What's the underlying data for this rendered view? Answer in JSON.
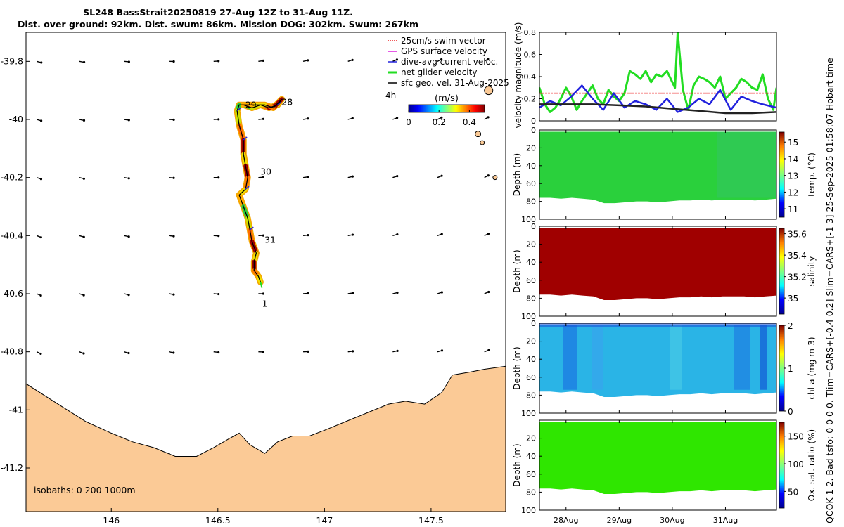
{
  "title": {
    "line1": "SL248 BassStrait20250819 27-Aug 12Z to 31-Aug 11Z.",
    "line2": "Dist. over ground: 92km. Dist. swum: 86km. Mission DOG: 302km. Swum: 267km"
  },
  "side_label": "QCOK 1  2. Bad tsfo: 0  0  0  0. Tlim=CARS+[-0.4 0.2] Slim=CARS+[-1 3] 25-Sep-2025 01:58:07 Hobart time",
  "colors": {
    "land": "#fbca96",
    "path": "#000000",
    "glider": "#22dd22",
    "current": "#2222dd",
    "swim": "#ee2222",
    "gps": "#dd22dd"
  },
  "chart_data": [
    {
      "type": "map",
      "xlim": [
        145.6,
        147.85
      ],
      "ylim": [
        -41.35,
        -39.7
      ],
      "xticks": [
        146,
        146.5,
        147,
        147.5
      ],
      "xtick_labels": [
        "146",
        "146.5",
        "147",
        "147.5"
      ],
      "yticks": [
        -39.8,
        -40,
        -40.2,
        -40.4,
        -40.6,
        -40.8,
        -41,
        -41.2
      ],
      "ytick_labels": [
        "-39.8",
        "-40",
        "-40.2",
        "-40.4",
        "-40.6",
        "-40.8",
        "-41",
        "-41.2"
      ],
      "legend": [
        {
          "label": "25cm/s swim vector",
          "color": "#ee2222"
        },
        {
          "label": "GPS surface velocity",
          "color": "#dd22dd"
        },
        {
          "label": "dive-avg current veloc.",
          "color": "#2222dd"
        },
        {
          "label": "net glider velocity",
          "color": "#22dd22"
        },
        {
          "label": "sfc geo. vel. 31-Aug-2025",
          "color": "#000000"
        }
      ],
      "legend_extra": "4h",
      "colorbar": {
        "label": "(m/s)",
        "ticks": [
          0,
          0.2,
          0.4
        ],
        "tick_labels": [
          "0",
          "0.2",
          "0.4"
        ],
        "range": [
          0,
          0.5
        ]
      },
      "isobaths_label": "isobaths: 0   200  1000m",
      "track": [
        [
          146.62,
          -39.95
        ],
        [
          146.66,
          -39.96
        ],
        [
          146.7,
          -39.95
        ],
        [
          146.74,
          -39.96
        ],
        [
          146.78,
          -39.95
        ],
        [
          146.8,
          -39.93
        ],
        [
          146.76,
          -39.96
        ],
        [
          146.72,
          -39.95
        ],
        [
          146.66,
          -39.95
        ],
        [
          146.6,
          -39.95
        ],
        [
          146.59,
          -39.97
        ],
        [
          146.6,
          -40.02
        ],
        [
          146.62,
          -40.07
        ],
        [
          146.62,
          -40.12
        ],
        [
          146.63,
          -40.16
        ],
        [
          146.64,
          -40.2
        ],
        [
          146.63,
          -40.24
        ],
        [
          146.6,
          -40.26
        ],
        [
          146.62,
          -40.3
        ],
        [
          146.64,
          -40.34
        ],
        [
          146.65,
          -40.38
        ],
        [
          146.66,
          -40.42
        ],
        [
          146.68,
          -40.46
        ],
        [
          146.67,
          -40.49
        ],
        [
          146.67,
          -40.52
        ],
        [
          146.69,
          -40.54
        ],
        [
          146.7,
          -40.56
        ]
      ],
      "day_labels": [
        {
          "text": "28",
          "lon": 146.825,
          "lat": -39.95
        },
        {
          "text": "29",
          "lon": 146.655,
          "lat": -39.96
        },
        {
          "text": "30",
          "lon": 146.725,
          "lat": -40.19
        },
        {
          "text": "31",
          "lon": 146.745,
          "lat": -40.425
        },
        {
          "text": "1",
          "lon": 146.72,
          "lat": -40.645
        }
      ],
      "arrow_grid": {
        "lons": [
          145.65,
          145.85,
          146.06,
          146.27,
          146.48,
          146.69,
          146.9,
          147.11,
          147.32,
          147.53,
          147.75
        ],
        "lats": [
          -39.8,
          -40.0,
          -40.2,
          -40.4,
          -40.6,
          -40.8,
          -41.0
        ]
      },
      "coast": [
        [
          145.6,
          -40.91
        ],
        [
          145.75,
          -40.98
        ],
        [
          145.88,
          -41.04
        ],
        [
          146.0,
          -41.08
        ],
        [
          146.1,
          -41.11
        ],
        [
          146.2,
          -41.13
        ],
        [
          146.3,
          -41.16
        ],
        [
          146.4,
          -41.16
        ],
        [
          146.48,
          -41.13
        ],
        [
          146.55,
          -41.1
        ],
        [
          146.6,
          -41.08
        ],
        [
          146.65,
          -41.12
        ],
        [
          146.72,
          -41.15
        ],
        [
          146.78,
          -41.11
        ],
        [
          146.85,
          -41.09
        ],
        [
          146.93,
          -41.09
        ],
        [
          147.0,
          -41.07
        ],
        [
          147.1,
          -41.04
        ],
        [
          147.2,
          -41.01
        ],
        [
          147.3,
          -40.98
        ],
        [
          147.38,
          -40.97
        ],
        [
          147.47,
          -40.98
        ],
        [
          147.55,
          -40.94
        ],
        [
          147.6,
          -40.88
        ],
        [
          147.68,
          -40.87
        ],
        [
          147.75,
          -40.86
        ],
        [
          147.85,
          -40.85
        ]
      ]
    },
    {
      "type": "line",
      "ylabel": "velocity magnitude (m/s)",
      "ylim": [
        0,
        0.8
      ],
      "yticks": [
        0,
        0.2,
        0.4,
        0.6,
        0.8
      ],
      "ytick_labels": [
        "0",
        "0.2",
        "0.4",
        "0.6",
        "0.8"
      ],
      "xlim": [
        27.5,
        31.96
      ],
      "series": [
        {
          "name": "net glider velocity",
          "color": "#22dd22",
          "x": [
            27.5,
            27.6,
            27.7,
            27.8,
            27.9,
            28.0,
            28.1,
            28.2,
            28.3,
            28.4,
            28.5,
            28.6,
            28.7,
            28.8,
            28.9,
            29.0,
            29.1,
            29.2,
            29.3,
            29.4,
            29.5,
            29.6,
            29.7,
            29.8,
            29.9,
            30.0,
            30.05,
            30.1,
            30.2,
            30.3,
            30.4,
            30.5,
            30.6,
            30.7,
            30.8,
            30.9,
            31.0,
            31.1,
            31.2,
            31.3,
            31.4,
            31.5,
            31.6,
            31.7,
            31.8,
            31.9,
            31.96
          ],
          "y": [
            0.3,
            0.15,
            0.08,
            0.12,
            0.2,
            0.3,
            0.22,
            0.1,
            0.18,
            0.25,
            0.32,
            0.2,
            0.15,
            0.28,
            0.22,
            0.18,
            0.25,
            0.45,
            0.42,
            0.38,
            0.45,
            0.35,
            0.42,
            0.4,
            0.45,
            0.35,
            0.3,
            0.8,
            0.28,
            0.1,
            0.32,
            0.4,
            0.38,
            0.35,
            0.3,
            0.4,
            0.2,
            0.25,
            0.3,
            0.38,
            0.35,
            0.3,
            0.28,
            0.42,
            0.2,
            0.1,
            0.3
          ]
        },
        {
          "name": "25cm/s swim vector",
          "color": "#ee2222",
          "x": [
            27.5,
            31.96
          ],
          "y": [
            0.25,
            0.25
          ]
        },
        {
          "name": "dive-avg current veloc.",
          "color": "#2222dd",
          "x": [
            27.5,
            27.7,
            27.9,
            28.1,
            28.3,
            28.5,
            28.7,
            28.9,
            29.1,
            29.3,
            29.5,
            29.7,
            29.9,
            30.1,
            30.3,
            30.5,
            30.7,
            30.9,
            31.1,
            31.3,
            31.5,
            31.7,
            31.96
          ],
          "y": [
            0.12,
            0.18,
            0.14,
            0.22,
            0.32,
            0.2,
            0.1,
            0.25,
            0.12,
            0.18,
            0.15,
            0.1,
            0.2,
            0.08,
            0.12,
            0.2,
            0.15,
            0.28,
            0.1,
            0.22,
            0.18,
            0.15,
            0.12
          ]
        },
        {
          "name": "sfc geo. vel.",
          "color": "#222222",
          "x": [
            27.5,
            28.0,
            28.5,
            29.0,
            29.5,
            30.0,
            30.5,
            31.0,
            31.5,
            31.96
          ],
          "y": [
            0.15,
            0.15,
            0.15,
            0.14,
            0.13,
            0.11,
            0.09,
            0.07,
            0.07,
            0.08
          ]
        }
      ]
    },
    {
      "type": "heatmap",
      "ylabel": "Depth (m)",
      "clabel": "temp. (°C)",
      "ylim": [
        0,
        100
      ],
      "yticks": [
        0,
        20,
        40,
        60,
        80,
        100
      ],
      "ytick_labels": [
        "0",
        "20",
        "40",
        "60",
        "80",
        "100"
      ],
      "cticks": [
        11,
        12,
        13,
        14,
        15
      ],
      "ctick_labels": [
        "11",
        "12",
        "13",
        "14",
        "15"
      ],
      "crange": [
        10.5,
        15.6
      ],
      "fill_color": "#2ad03c",
      "bottom_depth": [
        76,
        76,
        77,
        76,
        77,
        78,
        82,
        82,
        81,
        80,
        80,
        81,
        80,
        79,
        79,
        78,
        79,
        78,
        78,
        78,
        79,
        78,
        77
      ]
    },
    {
      "type": "heatmap",
      "ylabel": "Depth (m)",
      "clabel": "salinity",
      "ylim": [
        0,
        100
      ],
      "yticks": [
        0,
        20,
        40,
        60,
        80,
        100
      ],
      "ytick_labels": [
        "0",
        "20",
        "40",
        "60",
        "80",
        "100"
      ],
      "cticks": [
        35,
        35.2,
        35.4,
        35.6
      ],
      "ctick_labels": [
        "35",
        "35.2",
        "35.4",
        "35.6"
      ],
      "crange": [
        34.85,
        35.65
      ],
      "fill_color": "#a00000",
      "bottom_depth": [
        76,
        76,
        77,
        76,
        77,
        78,
        82,
        82,
        81,
        80,
        80,
        81,
        80,
        79,
        79,
        78,
        79,
        78,
        78,
        78,
        79,
        78,
        77
      ]
    },
    {
      "type": "heatmap",
      "ylabel": "Depth (m)",
      "clabel": "chl-a  (mg m-3)",
      "ylim": [
        0,
        100
      ],
      "yticks": [
        0,
        20,
        40,
        60,
        80,
        100
      ],
      "ytick_labels": [
        "0",
        "20",
        "40",
        "60",
        "80",
        "100"
      ],
      "cticks": [
        0,
        1,
        2
      ],
      "ctick_labels": [
        "0",
        "1",
        "2"
      ],
      "crange": [
        0,
        2
      ],
      "fill_color": "#2ab4e6",
      "bottom_depth": [
        76,
        76,
        77,
        76,
        77,
        78,
        82,
        82,
        81,
        80,
        80,
        81,
        80,
        79,
        79,
        78,
        79,
        78,
        78,
        78,
        79,
        78,
        77
      ]
    },
    {
      "type": "heatmap",
      "ylabel": "Depth (m)",
      "clabel": "Ox. sat. ratio (%)",
      "ylim": [
        0,
        100
      ],
      "yticks": [
        20,
        40,
        60,
        80,
        100
      ],
      "ytick_labels": [
        "20",
        "40",
        "60",
        "80",
        "100"
      ],
      "cticks": [
        50,
        100,
        150
      ],
      "ctick_labels": [
        "50",
        "100",
        "150"
      ],
      "crange": [
        20,
        175
      ],
      "fill_color": "#2fe600",
      "bottom_depth": [
        76,
        76,
        77,
        76,
        77,
        78,
        82,
        82,
        81,
        80,
        80,
        81,
        80,
        79,
        79,
        78,
        79,
        78,
        78,
        78,
        79,
        78,
        77
      ]
    }
  ],
  "time_axis": {
    "xlim": [
      27.5,
      31.96
    ],
    "ticks": [
      28,
      29,
      30,
      31
    ],
    "tick_labels": [
      "28Aug",
      "29Aug",
      "30Aug",
      "31Aug"
    ]
  }
}
